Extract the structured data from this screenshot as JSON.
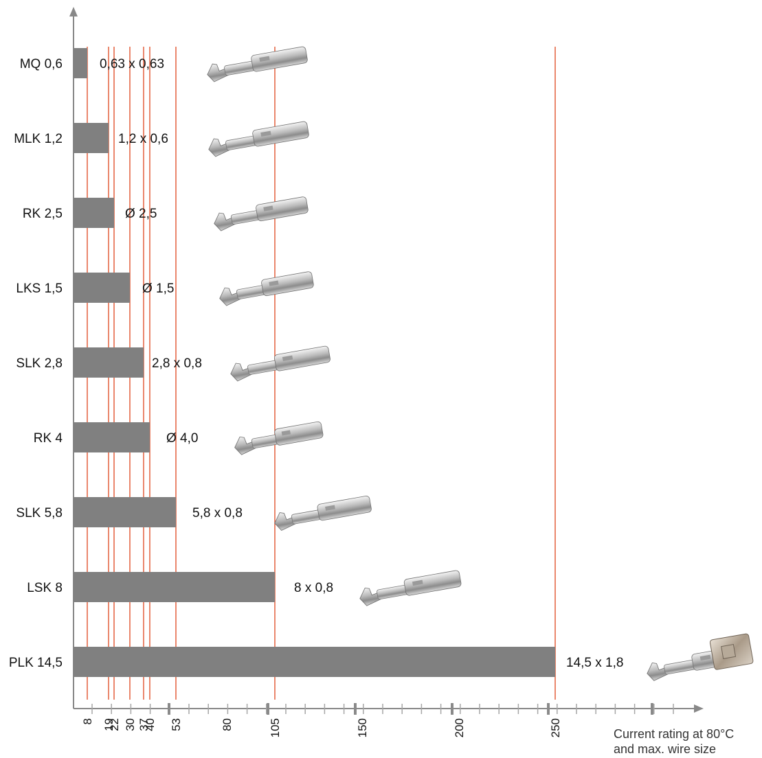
{
  "chart_data": {
    "type": "bar",
    "orientation": "horizontal",
    "categories": [
      "MQ 0,6",
      "MLK 1,2",
      "RK 2,5",
      "LKS 1,5",
      "SLK 2,8",
      "RK 4",
      "SLK 5,8",
      "LSK 8",
      "PLK 14,5"
    ],
    "values": [
      8,
      19,
      22,
      30,
      37,
      40,
      53,
      105,
      250
    ],
    "value_labels": [
      "0,63 x 0,63",
      "1,2 x 0,6",
      "Ø 2,5",
      "Ø 1,5",
      "2,8 x 0,8",
      "Ø 4,0",
      "5,8 x 0,8",
      "8 x 0,8",
      "14,5 x 1,8"
    ],
    "xticks": [
      8,
      19,
      22,
      30,
      37,
      40,
      53,
      80,
      105,
      150,
      200,
      250
    ],
    "xlabel_lines": [
      "Current rating at 80°C",
      "and max. wire size"
    ],
    "xlim": [
      0,
      300
    ],
    "grid": false,
    "legend": "none",
    "images": "contact terminal photo per category",
    "colors": {
      "bar": "#808080",
      "reference_line": "#e2532d",
      "axis": "#888888"
    }
  }
}
